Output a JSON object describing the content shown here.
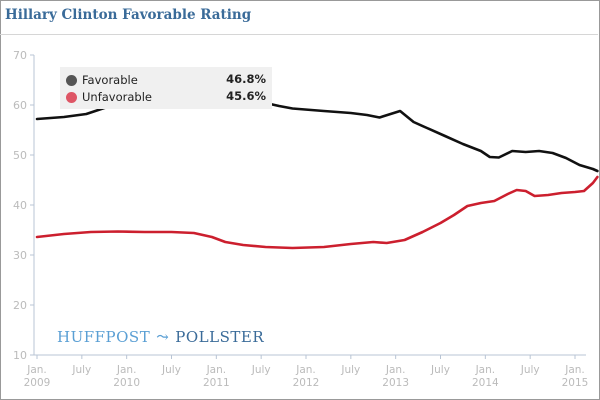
{
  "chart_data": {
    "type": "line",
    "title": "Hillary Clinton Favorable Rating",
    "xlabel": "",
    "ylabel": "",
    "ylim": [
      10,
      70
    ],
    "yticks": [
      10,
      20,
      30,
      40,
      50,
      60,
      70
    ],
    "xlim": [
      2009.0,
      2015.1
    ],
    "xticks": [
      {
        "x": 2009.0,
        "label": [
          "Jan.",
          "2009"
        ]
      },
      {
        "x": 2009.5,
        "label": [
          "July",
          ""
        ]
      },
      {
        "x": 2010.0,
        "label": [
          "Jan.",
          "2010"
        ]
      },
      {
        "x": 2010.5,
        "label": [
          "July",
          ""
        ]
      },
      {
        "x": 2011.0,
        "label": [
          "Jan.",
          "2011"
        ]
      },
      {
        "x": 2011.5,
        "label": [
          "July",
          ""
        ]
      },
      {
        "x": 2012.0,
        "label": [
          "Jan.",
          "2012"
        ]
      },
      {
        "x": 2012.5,
        "label": [
          "July",
          ""
        ]
      },
      {
        "x": 2013.0,
        "label": [
          "Jan.",
          "2013"
        ]
      },
      {
        "x": 2013.5,
        "label": [
          "July",
          ""
        ]
      },
      {
        "x": 2014.0,
        "label": [
          "Jan.",
          "2014"
        ]
      },
      {
        "x": 2014.5,
        "label": [
          "July",
          ""
        ]
      },
      {
        "x": 2015.0,
        "label": [
          "Jan.",
          "2015"
        ]
      }
    ],
    "grid": false,
    "legend_position": "top-left",
    "series": [
      {
        "name": "Favorable",
        "color": "#111111",
        "legend_color": "#555555",
        "latest": "46.8%",
        "points": [
          [
            2009.0,
            57.2
          ],
          [
            2009.3,
            57.6
          ],
          [
            2009.55,
            58.2
          ],
          [
            2009.75,
            59.4
          ],
          [
            2010.0,
            60.4
          ],
          [
            2010.3,
            60.8
          ],
          [
            2010.55,
            61.2
          ],
          [
            2010.8,
            61.6
          ],
          [
            2011.0,
            61.8
          ],
          [
            2011.25,
            61.4
          ],
          [
            2011.5,
            60.6
          ],
          [
            2011.7,
            59.8
          ],
          [
            2011.85,
            59.3
          ],
          [
            2012.2,
            58.8
          ],
          [
            2012.5,
            58.4
          ],
          [
            2012.68,
            58.0
          ],
          [
            2012.82,
            57.5
          ],
          [
            2013.05,
            58.8
          ],
          [
            2013.2,
            56.6
          ],
          [
            2013.35,
            55.4
          ],
          [
            2013.55,
            53.8
          ],
          [
            2013.75,
            52.2
          ],
          [
            2013.95,
            50.8
          ],
          [
            2014.05,
            49.6
          ],
          [
            2014.15,
            49.5
          ],
          [
            2014.3,
            50.8
          ],
          [
            2014.45,
            50.6
          ],
          [
            2014.6,
            50.8
          ],
          [
            2014.75,
            50.4
          ],
          [
            2014.9,
            49.4
          ],
          [
            2015.05,
            48.0
          ],
          [
            2015.2,
            47.2
          ],
          [
            2015.25,
            46.8
          ]
        ]
      },
      {
        "name": "Unfavorable",
        "color": "#cc1f2e",
        "legend_color": "#de5565",
        "latest": "45.6%",
        "points": [
          [
            2009.0,
            33.6
          ],
          [
            2009.3,
            34.2
          ],
          [
            2009.6,
            34.6
          ],
          [
            2009.9,
            34.7
          ],
          [
            2010.2,
            34.6
          ],
          [
            2010.5,
            34.6
          ],
          [
            2010.75,
            34.4
          ],
          [
            2010.95,
            33.6
          ],
          [
            2011.1,
            32.6
          ],
          [
            2011.3,
            32.0
          ],
          [
            2011.55,
            31.6
          ],
          [
            2011.85,
            31.4
          ],
          [
            2012.2,
            31.6
          ],
          [
            2012.5,
            32.2
          ],
          [
            2012.75,
            32.6
          ],
          [
            2012.9,
            32.4
          ],
          [
            2013.1,
            33.0
          ],
          [
            2013.3,
            34.6
          ],
          [
            2013.5,
            36.4
          ],
          [
            2013.65,
            38.0
          ],
          [
            2013.8,
            39.8
          ],
          [
            2013.95,
            40.4
          ],
          [
            2014.1,
            40.8
          ],
          [
            2014.25,
            42.2
          ],
          [
            2014.35,
            43.0
          ],
          [
            2014.45,
            42.8
          ],
          [
            2014.55,
            41.8
          ],
          [
            2014.7,
            42.0
          ],
          [
            2014.85,
            42.4
          ],
          [
            2015.0,
            42.6
          ],
          [
            2015.1,
            42.8
          ],
          [
            2015.2,
            44.4
          ],
          [
            2015.25,
            45.6
          ]
        ]
      }
    ]
  },
  "brand": {
    "part1": "HUFFPOST",
    "swoosh": "⤳",
    "part2": "POLLSTER"
  }
}
